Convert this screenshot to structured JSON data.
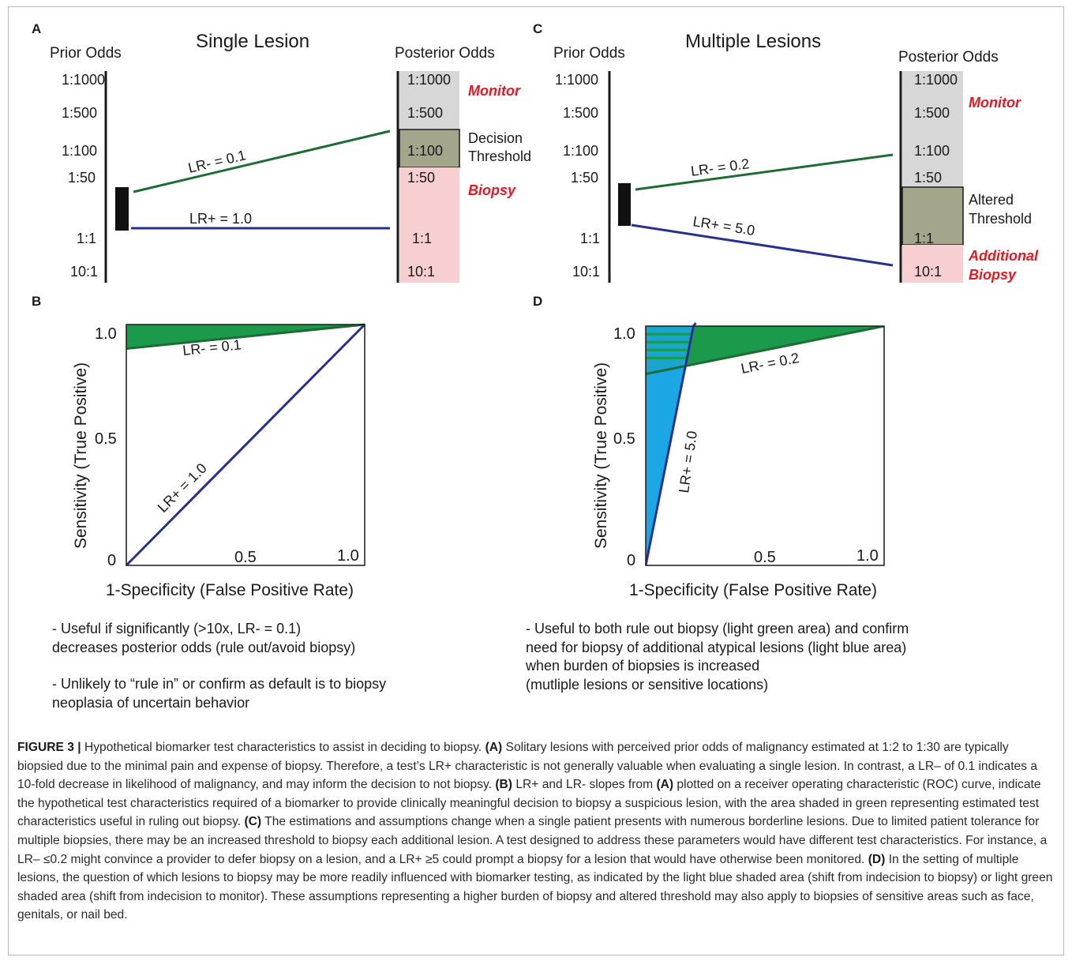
{
  "figure": {
    "panels": {
      "A": {
        "label": "A",
        "title": "Single Lesion",
        "prior_header": "Prior Odds",
        "posterior_header": "Posterior Odds",
        "prior_ticks": [
          "1:1000",
          "1:500",
          "1:100",
          "1:50",
          "1:1",
          "10:1"
        ],
        "posterior_ticks": [
          "1:1000",
          "1:500",
          "1:100",
          "1:50",
          "1:1",
          "10:1"
        ],
        "monitor_label": "Monitor",
        "biopsy_label": "Biopsy",
        "threshold_label_1": "Decision",
        "threshold_label_2": "Threshold",
        "line_neg_label": "LR- = 0.1",
        "line_pos_label": "LR+ = 1.0"
      },
      "B": {
        "label": "B",
        "ylabel": "Sensitivity (True Positive)",
        "xlabel": "1-Specificity (False Positive Rate)",
        "y_ticks": [
          "1.0",
          "0.5",
          "0"
        ],
        "x_ticks": [
          "0.5",
          "1.0"
        ],
        "line_neg_label": "LR- = 0.1",
        "line_pos_label": "LR+ = 1.0",
        "note_1": "- Useful if significantly (>10x, LR- = 0.1)\ndecreases posterior odds (rule out/avoid biopsy)",
        "note_2": "- Unlikely to “rule in” or confirm as default is to biopsy\nneoplasia of uncertain behavior"
      },
      "C": {
        "label": "C",
        "title": "Multiple Lesions",
        "prior_header": "Prior Odds",
        "posterior_header": "Posterior Odds",
        "prior_ticks": [
          "1:1000",
          "1:500",
          "1:100",
          "1:50",
          "1:1",
          "10:1"
        ],
        "posterior_ticks": [
          "1:1000",
          "1:500",
          "1:100",
          "1:50",
          "1:1",
          "10:1"
        ],
        "monitor_label": "Monitor",
        "additional_label_1": "Additional",
        "additional_label_2": "Biopsy",
        "threshold_label_1": "Altered",
        "threshold_label_2": "Threshold",
        "line_neg_label": "LR- = 0.2",
        "line_pos_label": "LR+ = 5.0"
      },
      "D": {
        "label": "D",
        "ylabel": "Sensitivity (True Positive)",
        "xlabel": "1-Specificity (False Positive Rate)",
        "y_ticks": [
          "1.0",
          "0.5",
          "0"
        ],
        "x_ticks": [
          "0.5",
          "1.0"
        ],
        "line_neg_label": "LR- = 0.2",
        "line_pos_label": "LR+ = 5.0",
        "note_1": "- Useful to both rule out biopsy (light green area) and confirm\nneed for biopsy of additional atypical lesions (light blue area)\nwhen burden of biopsies is increased\n(mutliple lesions or sensitive locations)"
      }
    },
    "colors": {
      "green_line": "#1f6b35",
      "green_fill": "#1a9a4a",
      "blue_line": "#27308c",
      "blue_fill": "#1aa7e4",
      "gray_zone": "#d7d7d8",
      "pink_zone": "#f7cfd0",
      "threshold_box": "#a3a68a",
      "red_text": "#e01a24"
    }
  },
  "chart_data": [
    {
      "type": "line",
      "panel": "B",
      "xlabel": "1-Specificity (False Positive Rate)",
      "ylabel": "Sensitivity (True Positive)",
      "xlim": [
        0,
        1
      ],
      "ylim": [
        0,
        1
      ],
      "series": [
        {
          "name": "LR- = 0.1",
          "x": [
            0,
            1
          ],
          "y": [
            0.9,
            1.0
          ]
        },
        {
          "name": "LR+ = 1.0",
          "x": [
            0,
            1
          ],
          "y": [
            0,
            1.0
          ]
        }
      ],
      "shaded_region": "area between LR- = 0.1 line and sensitivity 1.0 (green)"
    },
    {
      "type": "line",
      "panel": "D",
      "xlabel": "1-Specificity (False Positive Rate)",
      "ylabel": "Sensitivity (True Positive)",
      "xlim": [
        0,
        1
      ],
      "ylim": [
        0,
        1
      ],
      "series": [
        {
          "name": "LR- = 0.2",
          "x": [
            0,
            1
          ],
          "y": [
            0.8,
            1.0
          ]
        },
        {
          "name": "LR+ = 5.0",
          "x": [
            0,
            0.2
          ],
          "y": [
            0,
            1.0
          ]
        }
      ],
      "shaded_regions": [
        "green: above LR- = 0.2 line",
        "blue: left of LR+ = 5.0 line"
      ]
    }
  ],
  "caption": {
    "figure_label": "FIGURE 3 |",
    "intro": " Hypothetical biomarker test characteristics to assist in deciding to biopsy. ",
    "a_ref": "(A)",
    "a_text": " Solitary lesions with perceived prior odds of malignancy estimated at 1:2 to 1:30 are typically biopsied due to the minimal pain and expense of biopsy. Therefore, a test’s LR+ characteristic is not generally valuable when evaluating a single lesion. In contrast, a LR– of 0.1 indicates a 10-fold decrease in likelihood of malignancy, and may inform the decision to not biopsy. ",
    "b_ref": "(B)",
    "b_text": " LR+ and LR- slopes from ",
    "b_ref2": "(A)",
    "b_text2": " plotted on a receiver operating characteristic (ROC) curve, indicate the hypothetical test characteristics required of a biomarker to provide clinically meaningful decision to biopsy a suspicious lesion, with the area shaded in green representing estimated test characteristics useful in ruling out biopsy. ",
    "c_ref": "(C)",
    "c_text": " The estimations and assumptions change when a single patient presents with numerous borderline lesions. Due to limited patient tolerance for multiple biopsies, there may be an increased threshold to biopsy each additional lesion. A test designed to address these parameters would have different test characteristics. For instance, a LR– ≤0.2 might convince a provider to defer biopsy on a lesion, and a LR+ ≥5 could prompt a biopsy for a lesion that would have otherwise been monitored. ",
    "d_ref": "(D)",
    "d_text": " In the setting of multiple lesions, the question of which lesions to biopsy may be more readily influenced with biomarker testing, as indicated by the light blue shaded area (shift from indecision to biopsy) or light green shaded area (shift from indecision to monitor). These assumptions representing a higher burden of biopsy and altered threshold may also apply to biopsies of sensitive areas such as face, genitals, or nail bed."
  }
}
